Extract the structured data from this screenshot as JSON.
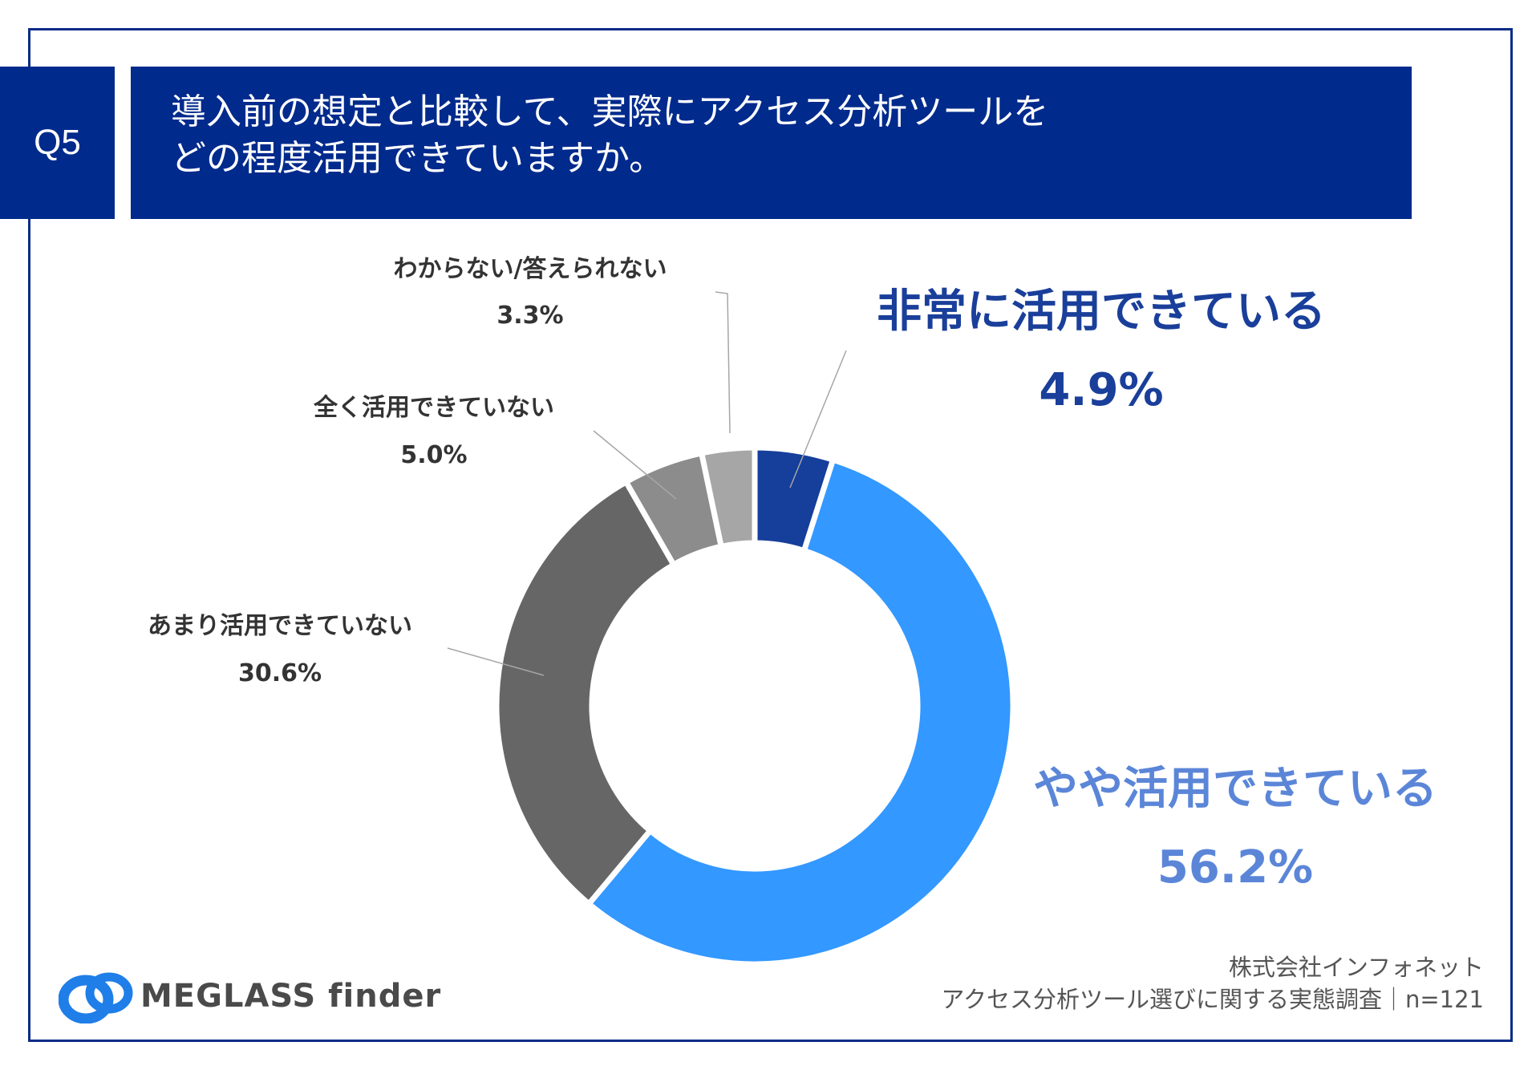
{
  "header": {
    "badge": "Q5",
    "question_line1": "導入前の想定と比較して、実際にアクセス分析ツールを",
    "question_line2": "どの程度活用できていますか。"
  },
  "chart_data": {
    "type": "pie",
    "donut": true,
    "slices": [
      {
        "label": "非常に活用できている",
        "value": 4.9,
        "display": "4.9%",
        "color": "#153f9b"
      },
      {
        "label": "やや活用できている",
        "value": 56.2,
        "display": "56.2%",
        "color": "#3398ff"
      },
      {
        "label": "あまり活用できていない",
        "value": 30.6,
        "display": "30.6%",
        "color": "#666666"
      },
      {
        "label": "全く活用できていない",
        "value": 5.0,
        "display": "5.0%",
        "color": "#8c8c8c"
      },
      {
        "label": "わからない/答えられない",
        "value": 3.3,
        "display": "3.3%",
        "color": "#a6a6a6"
      }
    ]
  },
  "footer": {
    "logo_text": "MEGLASS finder",
    "source_line1": "株式会社インフォネット",
    "source_line2": "アクセス分析ツール選びに関する実態調査｜n=121"
  },
  "colors": {
    "navy": "#002a8c",
    "frame": "#0b2c86",
    "label_dark": "#333333",
    "label_strong": "#1a3f9a",
    "label_light": "#5b86d8"
  }
}
